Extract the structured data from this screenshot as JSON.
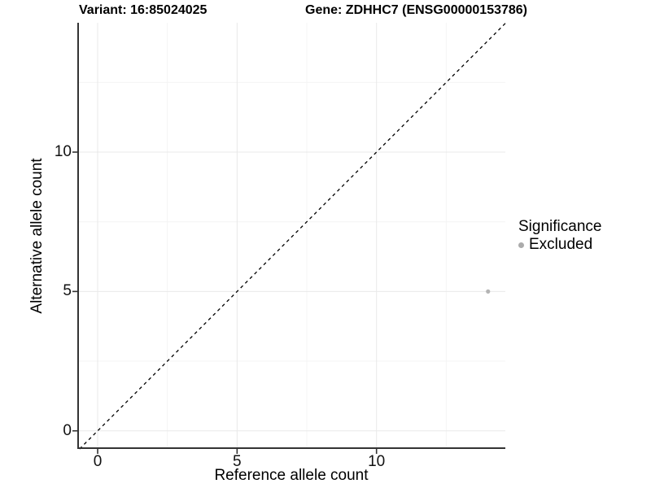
{
  "chart_data": {
    "type": "scatter",
    "titles": {
      "left": "Variant: 16:85024025",
      "right": "Gene: ZDHHC7 (ENSG00000153786)"
    },
    "xlabel": "Reference allele count",
    "ylabel": "Alternative allele count",
    "xlim": [
      -0.73,
      14.62
    ],
    "ylim": [
      -0.65,
      14.64
    ],
    "x_ticks": {
      "values": [
        0,
        5,
        10
      ],
      "labels": [
        "0",
        "5",
        "10"
      ]
    },
    "y_ticks": {
      "values": [
        0,
        5,
        10
      ],
      "labels": [
        "0",
        "5",
        "10"
      ]
    },
    "x_minor_ticks": [
      2.5,
      7.5,
      12.5
    ],
    "y_minor_ticks": [
      2.5,
      7.5,
      12.5
    ],
    "grid": true,
    "reference_line": {
      "type": "identity",
      "slope": 1,
      "intercept": 0,
      "style": "dashed",
      "color": "#000000"
    },
    "series": [
      {
        "name": "Excluded",
        "color": "#b4b4b4",
        "points": [
          {
            "x": 14,
            "y": 5
          }
        ]
      }
    ],
    "legend": {
      "position": "right",
      "title": "Significance",
      "entries": [
        {
          "label": "Excluded",
          "color": "#ababab"
        }
      ]
    },
    "colors": {
      "axis_line": "#333333",
      "tick_mark": "#333333",
      "grid_major": "#e9e9e9",
      "grid_minor": "#f4f4f4",
      "background": "#ffffff",
      "text": "#000000"
    }
  }
}
